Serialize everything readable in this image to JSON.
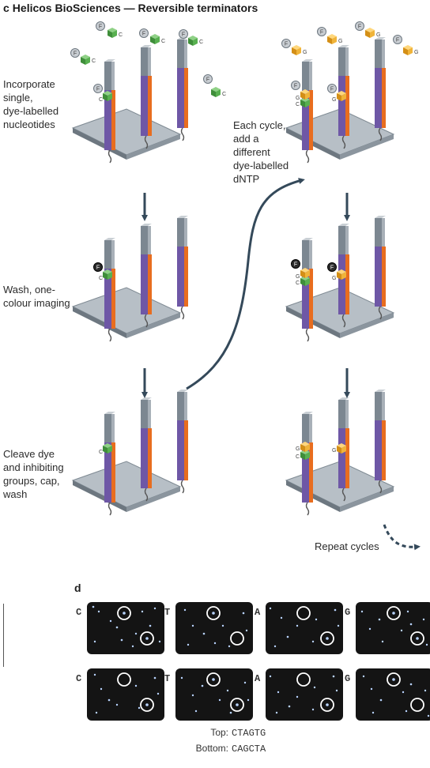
{
  "title": {
    "letter": "c",
    "text": "Helicos BioSciences — Reversible terminators"
  },
  "steps": [
    {
      "lines": [
        "Incorporate",
        "single,",
        "dye-labelled",
        "nucleotides"
      ]
    },
    {
      "lines": [
        "Wash, one-",
        "colour imaging"
      ]
    },
    {
      "lines": [
        "Cleave dye",
        "and inhibiting",
        "groups, cap,",
        "wash"
      ]
    }
  ],
  "cycle_note": {
    "lines": [
      "Each cycle,",
      "add a",
      "different",
      "dye-labelled",
      "dNTP"
    ]
  },
  "repeat_label": "Repeat cycles",
  "nucleotide_labels": {
    "c": "C",
    "g": "G",
    "f": "F"
  },
  "colors": {
    "purple": "#6e57a6",
    "orange": "#e86d1f",
    "green": "#58b050",
    "yellow": "#f0b43a",
    "grey": "#9aa3aa",
    "arrow": "#34495a"
  },
  "panel_d": {
    "letter": "d",
    "rows": [
      {
        "images": [
          {
            "base": "C"
          },
          {
            "base": "T"
          },
          {
            "base": "A"
          },
          {
            "base": "G"
          }
        ]
      },
      {
        "images": [
          {
            "base": "C"
          },
          {
            "base": "T"
          },
          {
            "base": "A"
          },
          {
            "base": "G"
          }
        ]
      }
    ],
    "sequences": [
      {
        "label": "Top:",
        "value": "CTAGTG"
      },
      {
        "label": "Bottom:",
        "value": "CAGCTA"
      }
    ]
  }
}
